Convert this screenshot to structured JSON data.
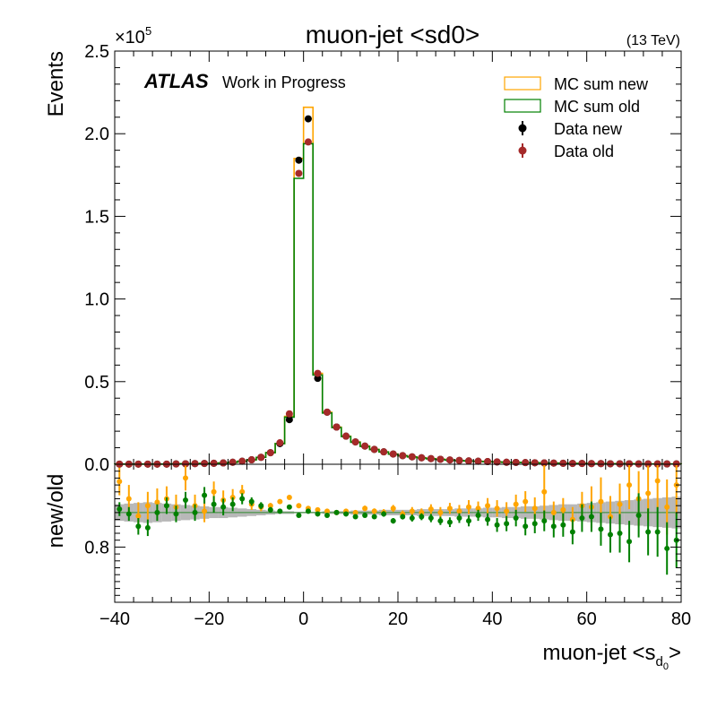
{
  "figure": {
    "title": "muon-jet <sd0>",
    "energy": "(13 TeV)",
    "atlas": "ATLAS",
    "atlas_suffix": "Work in Progress",
    "ylabel_main": "Events",
    "ylabel_ratio": "new/old",
    "xlabel": "muon-jet <s",
    "xlabel_sub1": "d",
    "xlabel_sub2": "0",
    "xlabel_close": ">",
    "exponent_prefix": "×10",
    "exponent_power": "5"
  },
  "chart_data": [
    {
      "type": "line",
      "panel": "main",
      "xlim": [
        -40,
        80
      ],
      "ylim": [
        0,
        2.5
      ],
      "y_multiplier": "×10^5",
      "x_ticks": [
        "−40",
        "−20",
        "0",
        "20",
        "40",
        "60",
        "80"
      ],
      "y_ticks": [
        "0.0",
        "0.5",
        "1.0",
        "1.5",
        "2.0",
        "2.5"
      ],
      "legend_position": "top-right",
      "legend": [
        {
          "label": "MC sum new",
          "style": "box",
          "color": "#FFA500"
        },
        {
          "label": "MC sum old",
          "style": "box",
          "color": "#008000"
        },
        {
          "label": "Data new",
          "style": "marker",
          "color": "#000000"
        },
        {
          "label": "Data old",
          "style": "marker",
          "color": "#A52A2A"
        }
      ],
      "bin_edges": [
        -40,
        -38,
        -36,
        -34,
        -32,
        -30,
        -28,
        -26,
        -24,
        -22,
        -20,
        -18,
        -16,
        -14,
        -12,
        -10,
        -8,
        -6,
        -4,
        -2,
        0,
        2,
        4,
        6,
        8,
        10,
        12,
        14,
        16,
        18,
        20,
        22,
        24,
        26,
        28,
        30,
        32,
        34,
        36,
        38,
        40,
        42,
        44,
        46,
        48,
        50,
        52,
        54,
        56,
        58,
        60,
        62,
        64,
        66,
        68,
        70,
        72,
        74,
        76,
        78,
        80
      ],
      "series": [
        {
          "name": "MC sum new",
          "color": "#FFA500",
          "values": [
            0.001,
            0.001,
            0.001,
            0.001,
            0.001,
            0.001,
            0.002,
            0.003,
            0.004,
            0.005,
            0.006,
            0.008,
            0.012,
            0.018,
            0.027,
            0.042,
            0.07,
            0.125,
            0.29,
            1.85,
            2.16,
            0.55,
            0.315,
            0.225,
            0.17,
            0.135,
            0.11,
            0.09,
            0.075,
            0.062,
            0.052,
            0.045,
            0.039,
            0.034,
            0.03,
            0.026,
            0.023,
            0.02,
            0.018,
            0.016,
            0.014,
            0.012,
            0.011,
            0.01,
            0.009,
            0.008,
            0.007,
            0.006,
            0.005,
            0.005,
            0.004,
            0.004,
            0.003,
            0.003,
            0.003,
            0.002,
            0.002,
            0.002,
            0.002,
            0.002
          ]
        },
        {
          "name": "MC sum old",
          "color": "#008000",
          "values": [
            0.001,
            0.001,
            0.001,
            0.001,
            0.001,
            0.001,
            0.002,
            0.003,
            0.004,
            0.005,
            0.006,
            0.008,
            0.012,
            0.018,
            0.027,
            0.042,
            0.07,
            0.125,
            0.285,
            1.73,
            1.94,
            0.54,
            0.31,
            0.222,
            0.168,
            0.133,
            0.108,
            0.089,
            0.074,
            0.061,
            0.051,
            0.044,
            0.038,
            0.033,
            0.029,
            0.025,
            0.022,
            0.02,
            0.017,
            0.015,
            0.014,
            0.012,
            0.011,
            0.01,
            0.009,
            0.008,
            0.007,
            0.006,
            0.005,
            0.005,
            0.004,
            0.004,
            0.003,
            0.003,
            0.003,
            0.002,
            0.002,
            0.002,
            0.002,
            0.002
          ]
        },
        {
          "name": "Data new",
          "color": "#000000",
          "values": [
            0.001,
            0.001,
            0.001,
            0.001,
            0.001,
            0.001,
            0.002,
            0.003,
            0.004,
            0.005,
            0.006,
            0.008,
            0.012,
            0.018,
            0.027,
            0.042,
            0.07,
            0.125,
            0.27,
            1.84,
            2.09,
            0.52,
            0.315,
            0.225,
            0.17,
            0.135,
            0.11,
            0.09,
            0.075,
            0.062,
            0.052,
            0.045,
            0.039,
            0.034,
            0.03,
            0.026,
            0.023,
            0.02,
            0.018,
            0.016,
            0.014,
            0.012,
            0.011,
            0.01,
            0.009,
            0.008,
            0.007,
            0.006,
            0.005,
            0.005,
            0.004,
            0.004,
            0.003,
            0.003,
            0.003,
            0.002,
            0.002,
            0.002,
            0.002,
            0.002
          ]
        },
        {
          "name": "Data old",
          "color": "#A52A2A",
          "values": [
            0.001,
            0.001,
            0.001,
            0.001,
            0.001,
            0.001,
            0.002,
            0.003,
            0.004,
            0.005,
            0.006,
            0.008,
            0.012,
            0.018,
            0.027,
            0.042,
            0.07,
            0.13,
            0.305,
            1.76,
            1.95,
            0.55,
            0.315,
            0.225,
            0.17,
            0.135,
            0.11,
            0.09,
            0.075,
            0.062,
            0.052,
            0.045,
            0.039,
            0.034,
            0.03,
            0.026,
            0.023,
            0.02,
            0.018,
            0.016,
            0.014,
            0.012,
            0.011,
            0.01,
            0.009,
            0.008,
            0.007,
            0.006,
            0.005,
            0.005,
            0.004,
            0.004,
            0.003,
            0.003,
            0.003,
            0.002,
            0.002,
            0.002,
            0.002,
            0.002
          ]
        }
      ]
    },
    {
      "type": "scatter",
      "panel": "ratio",
      "xlim": [
        -40,
        80
      ],
      "ylim": [
        0.72,
        0.92
      ],
      "y_ticks": [
        "0.8"
      ],
      "x": [
        -39,
        -37,
        -35,
        -33,
        -31,
        -29,
        -27,
        -25,
        -23,
        -21,
        -19,
        -17,
        -15,
        -13,
        -11,
        -9,
        -7,
        -5,
        -3,
        -1,
        1,
        3,
        5,
        7,
        9,
        11,
        13,
        15,
        17,
        19,
        21,
        23,
        25,
        27,
        29,
        31,
        33,
        35,
        37,
        39,
        41,
        43,
        45,
        47,
        49,
        51,
        53,
        55,
        57,
        59,
        61,
        63,
        65,
        67,
        69,
        71,
        73,
        75,
        77,
        79
      ],
      "reference_line": 0.85,
      "band": {
        "color": "#A0A0A0",
        "half_width": [
          0.012,
          0.013,
          0.014,
          0.015,
          0.014,
          0.013,
          0.012,
          0.011,
          0.01,
          0.009,
          0.008,
          0.008,
          0.007,
          0.006,
          0.005,
          0.004,
          0.003,
          0.002,
          0.002,
          0.001,
          0.001,
          0.001,
          0.002,
          0.002,
          0.002,
          0.003,
          0.003,
          0.003,
          0.004,
          0.004,
          0.004,
          0.004,
          0.005,
          0.005,
          0.005,
          0.005,
          0.006,
          0.006,
          0.006,
          0.007,
          0.007,
          0.008,
          0.008,
          0.009,
          0.009,
          0.01,
          0.011,
          0.012,
          0.012,
          0.013,
          0.014,
          0.015,
          0.016,
          0.017,
          0.018,
          0.019,
          0.02,
          0.021,
          0.022,
          0.023
        ]
      },
      "series": [
        {
          "name": "Data new",
          "color": "#FFA500",
          "values": [
            0.895,
            0.87,
            0.845,
            0.86,
            0.865,
            0.87,
            0.858,
            0.9,
            0.86,
            0.852,
            0.88,
            0.868,
            0.872,
            0.88,
            0.862,
            0.858,
            0.86,
            0.866,
            0.872,
            0.86,
            0.856,
            0.854,
            0.852,
            0.85,
            0.852,
            0.85,
            0.856,
            0.852,
            0.85,
            0.856,
            0.848,
            0.852,
            0.85,
            0.855,
            0.85,
            0.856,
            0.852,
            0.858,
            0.856,
            0.86,
            0.856,
            0.852,
            0.862,
            0.866,
            0.856,
            0.88,
            0.85,
            0.854,
            0.84,
            0.86,
            0.858,
            0.866,
            0.844,
            0.862,
            0.89,
            0.87,
            0.878,
            0.896,
            0.858,
            0.89
          ],
          "err": [
            0.02,
            0.02,
            0.02,
            0.02,
            0.02,
            0.018,
            0.018,
            0.018,
            0.016,
            0.016,
            0.015,
            0.014,
            0.012,
            0.01,
            0.008,
            0.006,
            0.004,
            0.003,
            0.002,
            0.001,
            0.001,
            0.001,
            0.002,
            0.002,
            0.003,
            0.003,
            0.004,
            0.004,
            0.005,
            0.005,
            0.005,
            0.006,
            0.006,
            0.007,
            0.008,
            0.008,
            0.009,
            0.01,
            0.01,
            0.011,
            0.012,
            0.013,
            0.014,
            0.015,
            0.016,
            0.04,
            0.016,
            0.017,
            0.018,
            0.02,
            0.03,
            0.035,
            0.03,
            0.03,
            0.035,
            0.04,
            0.04,
            0.04,
            0.04,
            0.045
          ]
        },
        {
          "name": "Data old",
          "color": "#008000",
          "values": [
            0.855,
            0.848,
            0.83,
            0.828,
            0.85,
            0.86,
            0.848,
            0.868,
            0.85,
            0.875,
            0.862,
            0.858,
            0.862,
            0.87,
            0.866,
            0.86,
            0.854,
            0.852,
            0.858,
            0.846,
            0.852,
            0.848,
            0.846,
            0.85,
            0.848,
            0.844,
            0.846,
            0.844,
            0.848,
            0.838,
            0.844,
            0.842,
            0.844,
            0.842,
            0.838,
            0.836,
            0.842,
            0.838,
            0.846,
            0.84,
            0.832,
            0.834,
            0.842,
            0.83,
            0.834,
            0.838,
            0.83,
            0.832,
            0.822,
            0.842,
            0.844,
            0.826,
            0.818,
            0.82,
            0.808,
            0.846,
            0.822,
            0.822,
            0.798,
            0.81
          ],
          "err": [
            0.01,
            0.01,
            0.012,
            0.012,
            0.012,
            0.012,
            0.012,
            0.012,
            0.012,
            0.012,
            0.012,
            0.012,
            0.01,
            0.008,
            0.006,
            0.005,
            0.004,
            0.003,
            0.002,
            0.001,
            0.001,
            0.001,
            0.001,
            0.002,
            0.002,
            0.003,
            0.003,
            0.003,
            0.004,
            0.004,
            0.004,
            0.005,
            0.005,
            0.006,
            0.006,
            0.007,
            0.007,
            0.008,
            0.008,
            0.009,
            0.01,
            0.011,
            0.012,
            0.013,
            0.014,
            0.015,
            0.016,
            0.017,
            0.018,
            0.02,
            0.022,
            0.024,
            0.026,
            0.028,
            0.03,
            0.032,
            0.034,
            0.036,
            0.038,
            0.04
          ]
        }
      ]
    }
  ]
}
